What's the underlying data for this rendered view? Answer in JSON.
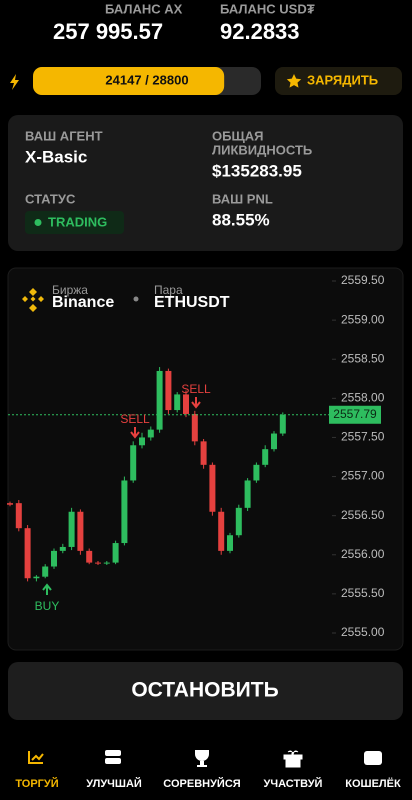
{
  "header": {
    "balance_ax_label": "БАЛАНС AX",
    "balance_ax_value": "257 995.57",
    "balance_usdt_label": "БАЛАНС USD₮",
    "balance_usdt_value": "92.2833"
  },
  "energy": {
    "label": "24147 / 28800",
    "current": 24147,
    "max": 28800,
    "button": "ЗАРЯДИТЬ"
  },
  "agent": {
    "agent_label": "ВАШ АГЕНТ",
    "agent_value": "X-Basic",
    "liquidity_label": [
      "ОБЩАЯ",
      "ЛИКВИДНОСТЬ"
    ],
    "liquidity_value": "$135283.95",
    "status_label": "СТАТУС",
    "status_value": "TRADING",
    "pnl_label": "ВАШ PNL",
    "pnl_value": "88.55%"
  },
  "chart": {
    "type": "candlestick",
    "exchange_label": "Биржа",
    "exchange": "Binance",
    "pair_label": "Пара",
    "pair": "ETHUSDT",
    "ylim": [
      2555.0,
      2559.5
    ],
    "yticks": [
      {
        "value": 2555.0,
        "label": "2555.00"
      },
      {
        "value": 2555.5,
        "label": "2555.50"
      },
      {
        "value": 2556.0,
        "label": "2556.00"
      },
      {
        "value": 2556.5,
        "label": "2556.50"
      },
      {
        "value": 2557.0,
        "label": "2557.00"
      },
      {
        "value": 2557.5,
        "label": "2557.50"
      },
      {
        "value": 2558.0,
        "label": "2558.00"
      },
      {
        "value": 2558.5,
        "label": "2558.50"
      },
      {
        "value": 2559.0,
        "label": "2559.00"
      },
      {
        "value": 2559.5,
        "label": "2559.50"
      }
    ],
    "current_price": 2557.79,
    "up_color": "#2ebd5f",
    "down_color": "#e5413f",
    "candles": [
      [
        2556.66,
        2556.68,
        2556.62,
        2556.64
      ],
      [
        2556.66,
        2556.7,
        2556.3,
        2556.34
      ],
      [
        2556.34,
        2556.38,
        2555.66,
        2555.7
      ],
      [
        2555.7,
        2555.74,
        2555.66,
        2555.72
      ],
      [
        2555.72,
        2555.88,
        2555.7,
        2555.85
      ],
      [
        2555.85,
        2556.08,
        2555.82,
        2556.05
      ],
      [
        2556.05,
        2556.14,
        2556.02,
        2556.1
      ],
      [
        2556.1,
        2556.6,
        2556.06,
        2556.55
      ],
      [
        2556.55,
        2556.58,
        2556.0,
        2556.05
      ],
      [
        2556.05,
        2556.08,
        2555.88,
        2555.9
      ],
      [
        2555.9,
        2555.92,
        2555.87,
        2555.89
      ],
      [
        2555.89,
        2555.92,
        2555.87,
        2555.9
      ],
      [
        2555.9,
        2556.18,
        2555.88,
        2556.15
      ],
      [
        2556.15,
        2557.0,
        2556.12,
        2556.95
      ],
      [
        2556.95,
        2557.45,
        2556.92,
        2557.4
      ],
      [
        2557.4,
        2557.56,
        2557.36,
        2557.5
      ],
      [
        2557.5,
        2557.64,
        2557.46,
        2557.6
      ],
      [
        2557.6,
        2558.4,
        2557.56,
        2558.35
      ],
      [
        2558.35,
        2558.38,
        2557.8,
        2557.85
      ],
      [
        2557.85,
        2558.08,
        2557.82,
        2558.05
      ],
      [
        2558.05,
        2558.1,
        2557.76,
        2557.8
      ],
      [
        2557.8,
        2557.84,
        2557.4,
        2557.45
      ],
      [
        2557.45,
        2557.48,
        2557.1,
        2557.15
      ],
      [
        2557.15,
        2557.18,
        2556.5,
        2556.55
      ],
      [
        2556.55,
        2556.6,
        2556.0,
        2556.05
      ],
      [
        2556.05,
        2556.28,
        2556.02,
        2556.25
      ],
      [
        2556.25,
        2556.64,
        2556.22,
        2556.6
      ],
      [
        2556.6,
        2556.98,
        2556.56,
        2556.95
      ],
      [
        2556.95,
        2557.18,
        2556.92,
        2557.15
      ],
      [
        2557.15,
        2557.4,
        2557.12,
        2557.35
      ],
      [
        2557.35,
        2557.58,
        2557.32,
        2557.55
      ],
      [
        2557.55,
        2557.82,
        2557.52,
        2557.79
      ]
    ],
    "annotations": [
      "BUY",
      "SELL",
      "SELL"
    ]
  },
  "stop_button": "ОСТАНОВИТЬ",
  "nav": [
    "ТОРГУЙ",
    "УЛУЧШАЙ",
    "СОРЕВНУЙСЯ",
    "УЧАСТВУЙ",
    "КОШЕЛЁК"
  ]
}
